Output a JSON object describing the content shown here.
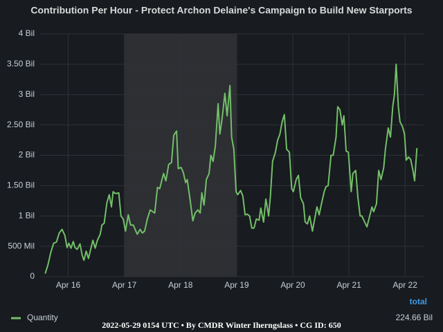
{
  "chart_data": {
    "type": "line",
    "title": "Contribution Per Hour - Protect Archon Delaine's Campaign to Build New Starports",
    "footer": "2022-05-29 0154 UTC • By CMDR Winter Iherngslass • CG ID: 650",
    "legend_header": "total",
    "grid": true,
    "highlight": [
      17,
      19
    ],
    "xlim": [
      15.5,
      22.33
    ],
    "xticks": [
      {
        "value": 16,
        "label": "Apr 16"
      },
      {
        "value": 17,
        "label": "Apr 17"
      },
      {
        "value": 18,
        "label": "Apr 18"
      },
      {
        "value": 19,
        "label": "Apr 19"
      },
      {
        "value": 20,
        "label": "Apr 20"
      },
      {
        "value": 21,
        "label": "Apr 21"
      },
      {
        "value": 22,
        "label": "Apr 22"
      }
    ],
    "ylim": [
      0,
      4
    ],
    "yticks": [
      0,
      {
        "value": 0.5,
        "label": "500 Mil"
      },
      {
        "value": 1,
        "label": "1 Bil"
      },
      {
        "value": 1.5,
        "label": "1.50 Bil"
      },
      {
        "value": 2,
        "label": "2 Bil"
      },
      {
        "value": 2.5,
        "label": "2.50 Bil"
      },
      {
        "value": 3,
        "label": "3 Bil"
      },
      {
        "value": 3.5,
        "label": "3.50 Bil"
      },
      {
        "value": 4,
        "label": "4 Bil"
      }
    ],
    "x": [
      15.59,
      15.64,
      15.69,
      15.74,
      15.79,
      15.84,
      15.89,
      15.94,
      15.98,
      16.01,
      16.05,
      16.09,
      16.12,
      16.16,
      16.21,
      16.25,
      16.28,
      16.32,
      16.36,
      16.4,
      16.44,
      16.48,
      16.52,
      16.57,
      16.6,
      16.64,
      16.69,
      16.73,
      16.77,
      16.8,
      16.84,
      16.9,
      16.94,
      16.98,
      17.02,
      17.07,
      17.11,
      17.16,
      17.2,
      17.23,
      17.28,
      17.32,
      17.36,
      17.41,
      17.46,
      17.49,
      17.54,
      17.59,
      17.63,
      17.67,
      17.7,
      17.74,
      17.79,
      17.84,
      17.88,
      17.93,
      17.96,
      18.01,
      18.05,
      18.09,
      18.12,
      18.17,
      18.22,
      18.26,
      18.31,
      18.35,
      18.38,
      18.42,
      18.46,
      18.51,
      18.54,
      18.58,
      18.62,
      18.67,
      18.7,
      18.74,
      18.79,
      18.83,
      18.88,
      18.91,
      18.95,
      18.99,
      19.02,
      19.07,
      19.11,
      19.15,
      19.19,
      19.23,
      19.27,
      19.31,
      19.35,
      19.4,
      19.43,
      19.48,
      19.52,
      19.57,
      19.6,
      19.64,
      19.69,
      19.73,
      19.77,
      19.81,
      19.85,
      19.89,
      19.94,
      19.98,
      20.01,
      20.06,
      20.1,
      20.14,
      20.19,
      20.22,
      20.26,
      20.3,
      20.35,
      20.38,
      20.43,
      20.47,
      20.51,
      20.56,
      20.59,
      20.63,
      20.68,
      20.72,
      20.77,
      20.8,
      20.84,
      20.88,
      20.91,
      20.95,
      20.99,
      21.04,
      21.07,
      21.12,
      21.16,
      21.2,
      21.23,
      21.28,
      21.32,
      21.37,
      21.41,
      21.44,
      21.49,
      21.53,
      21.57,
      21.62,
      21.65,
      21.7,
      21.74,
      21.78,
      21.81,
      21.84,
      21.88,
      21.91,
      21.95,
      21.99,
      22.02,
      22.06,
      22.1,
      22.14,
      22.17,
      22.21
    ],
    "series": [
      {
        "name": "Quantity",
        "color": "#73bf69",
        "total": "224.66 Bil",
        "values": [
          0.05,
          0.2,
          0.4,
          0.55,
          0.57,
          0.72,
          0.78,
          0.68,
          0.48,
          0.55,
          0.47,
          0.58,
          0.48,
          0.45,
          0.54,
          0.35,
          0.27,
          0.42,
          0.3,
          0.45,
          0.6,
          0.47,
          0.6,
          0.7,
          0.85,
          0.88,
          1.22,
          1.35,
          1.15,
          1.4,
          1.37,
          1.38,
          1.0,
          0.95,
          0.75,
          1.02,
          0.85,
          0.85,
          0.76,
          0.7,
          0.78,
          0.72,
          0.75,
          0.95,
          1.1,
          1.08,
          1.05,
          1.47,
          1.45,
          1.6,
          1.7,
          1.58,
          1.85,
          1.88,
          2.33,
          2.4,
          1.78,
          1.8,
          1.72,
          1.55,
          1.6,
          1.27,
          0.92,
          1.05,
          1.1,
          1.05,
          1.38,
          1.18,
          1.6,
          1.7,
          2.0,
          1.9,
          2.15,
          2.85,
          2.35,
          2.6,
          3.02,
          2.65,
          3.15,
          2.3,
          2.1,
          1.4,
          1.35,
          1.42,
          1.33,
          1.02,
          1.03,
          1.0,
          0.8,
          0.8,
          0.95,
          0.93,
          1.13,
          0.9,
          1.28,
          1.0,
          1.32,
          1.9,
          2.05,
          2.25,
          2.35,
          2.55,
          2.67,
          2.1,
          2.05,
          1.45,
          1.4,
          1.6,
          1.67,
          1.3,
          1.2,
          0.9,
          0.87,
          1.0,
          0.75,
          0.9,
          1.15,
          1.02,
          1.2,
          1.4,
          1.48,
          1.5,
          2.0,
          2.0,
          2.3,
          2.8,
          2.75,
          2.5,
          2.65,
          2.07,
          2.05,
          1.4,
          1.7,
          1.75,
          1.3,
          1.0,
          1.0,
          0.9,
          0.82,
          1.0,
          1.15,
          1.07,
          1.2,
          1.75,
          1.6,
          1.8,
          2.1,
          2.45,
          2.3,
          2.8,
          3.0,
          3.5,
          2.8,
          2.55,
          2.48,
          2.35,
          1.92,
          1.97,
          1.93,
          1.75,
          1.58,
          2.12
        ]
      }
    ]
  }
}
